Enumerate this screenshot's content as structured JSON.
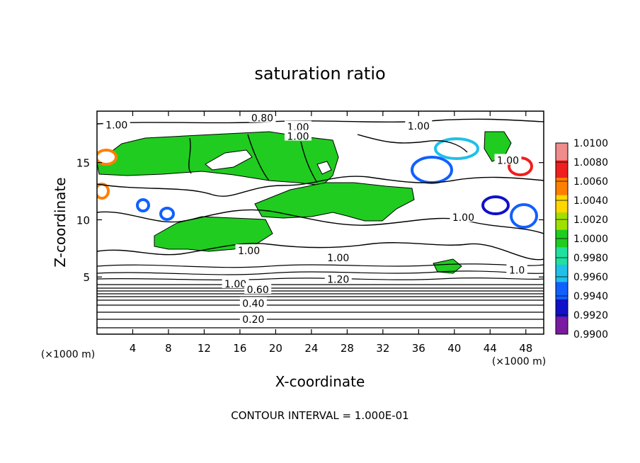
{
  "chart_data": {
    "type": "heatmap",
    "title": "saturation ratio",
    "xlabel": "X-coordinate",
    "ylabel": "Z-coordinate",
    "x_unit": "(×1000 m)",
    "y_unit": "(×1000 m)",
    "xlim": [
      0,
      50
    ],
    "ylim": [
      0,
      19.5
    ],
    "x_ticks": [
      4,
      8,
      12,
      16,
      20,
      24,
      28,
      32,
      36,
      40,
      44,
      48
    ],
    "y_ticks": [
      5,
      10,
      15
    ],
    "footer": "CONTOUR INTERVAL = 1.000E-01",
    "colorbar": {
      "levels": [
        "1.0100",
        "1.0080",
        "1.0060",
        "1.0040",
        "1.0020",
        "1.0000",
        "0.9980",
        "0.9960",
        "0.9940",
        "0.9920",
        "0.9900"
      ],
      "colors": [
        "#f08c8c",
        "#f01e1e",
        "#ff8000",
        "#ffd700",
        "#a0e000",
        "#20cc20",
        "#20e0a0",
        "#20c0e8",
        "#1060ff",
        "#1010c8",
        "#7a1aa0"
      ]
    },
    "contour_labels": [
      {
        "text": "0.80",
        "x": 18.5,
        "z": 18.9
      },
      {
        "text": "1.00",
        "x": 2.2,
        "z": 18.3
      },
      {
        "text": "1.00",
        "x": 22.5,
        "z": 18.1
      },
      {
        "text": "1.00",
        "x": 22.5,
        "z": 17.3
      },
      {
        "text": "1.00",
        "x": 36.0,
        "z": 18.2
      },
      {
        "text": "1.00",
        "x": 46.0,
        "z": 15.2
      },
      {
        "text": "1.00",
        "x": 41.0,
        "z": 10.2
      },
      {
        "text": "1.00",
        "x": 17.0,
        "z": 7.3
      },
      {
        "text": "1.00",
        "x": 27.0,
        "z": 6.7
      },
      {
        "text": "1.0",
        "x": 47.0,
        "z": 5.6
      },
      {
        "text": "1.20",
        "x": 27.0,
        "z": 4.8
      },
      {
        "text": "1.00",
        "x": 15.5,
        "z": 4.4
      },
      {
        "text": "0.60",
        "x": 18.0,
        "z": 3.9
      },
      {
        "text": "0.40",
        "x": 17.5,
        "z": 2.7
      },
      {
        "text": "0.20",
        "x": 17.5,
        "z": 1.3
      }
    ]
  }
}
